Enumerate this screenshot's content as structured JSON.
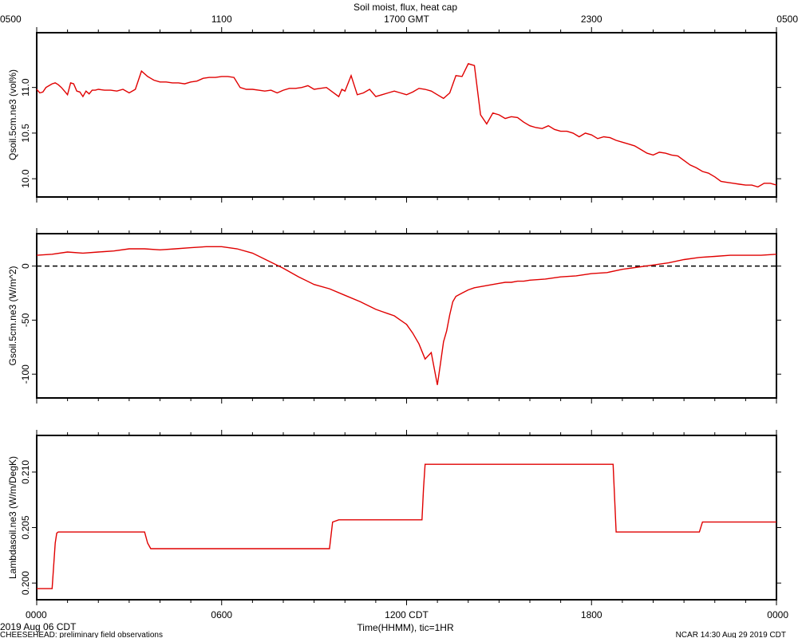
{
  "title": "Soil moist, flux, heat cap",
  "footer": {
    "date_label": "2019 Aug 06 CDT",
    "project_label": "CHEESEHEAD: preliminary field observations",
    "stamp_label": "NCAR 14:30 Aug 29 2019 CDT",
    "xaxis_label": "Time(HHMM), tic=1HR"
  },
  "colors": {
    "series": "#e00000",
    "frame": "#000000",
    "zero_line": "#000000"
  },
  "chart_data": [
    {
      "type": "line",
      "ylabel": "Qsoil.5cm.ne3 (vol%)",
      "ylim": [
        9.8,
        11.6
      ],
      "yticks": [
        10.0,
        10.5,
        11.0
      ],
      "ytick_labels": [
        "10.0",
        "10.5",
        "11.0"
      ],
      "top_axis": {
        "ticks": [
          0,
          6,
          12,
          18,
          24
        ],
        "labels": [
          "0500",
          "1100",
          "1700 GMT",
          "2300",
          "0500"
        ]
      },
      "series": [
        {
          "x": [
            0,
            0.1,
            0.2,
            0.3,
            0.4,
            0.5,
            0.6,
            0.7,
            0.8,
            0.9,
            1.0,
            1.1,
            1.2,
            1.3,
            1.4,
            1.5,
            1.6,
            1.7,
            1.8,
            1.9,
            2.0,
            2.2,
            2.4,
            2.6,
            2.8,
            3.0,
            3.2,
            3.4,
            3.6,
            3.7,
            3.8,
            4.0,
            4.2,
            4.4,
            4.6,
            4.8,
            5.0,
            5.2,
            5.4,
            5.6,
            5.8,
            6.0,
            6.2,
            6.4,
            6.6,
            6.8,
            7.0,
            7.2,
            7.4,
            7.6,
            7.8,
            8.0,
            8.2,
            8.4,
            8.6,
            8.8,
            9.0,
            9.2,
            9.4,
            9.6,
            9.8,
            9.9,
            10.0,
            10.2,
            10.4,
            10.6,
            10.8,
            11.0,
            11.2,
            11.4,
            11.6,
            11.8,
            12.0,
            12.2,
            12.4,
            12.6,
            12.8,
            13.0,
            13.2,
            13.4,
            13.6,
            13.8,
            14.0,
            14.2,
            14.4,
            14.6,
            14.8,
            15.0,
            15.2,
            15.4,
            15.6,
            15.8,
            16.0,
            16.2,
            16.4,
            16.6,
            16.8,
            17.0,
            17.2,
            17.4,
            17.6,
            17.8,
            18.0,
            18.2,
            18.4,
            18.6,
            18.8,
            19.0,
            19.2,
            19.4,
            19.6,
            19.8,
            20.0,
            20.2,
            20.4,
            20.6,
            20.8,
            21.0,
            21.2,
            21.4,
            21.6,
            21.8,
            22.0,
            22.2,
            22.4,
            22.6,
            22.8,
            23.0,
            23.2,
            23.4,
            23.6,
            23.8,
            24.0
          ],
          "y": [
            10.98,
            10.94,
            10.95,
            11.0,
            11.02,
            11.04,
            11.05,
            11.03,
            11.0,
            10.96,
            10.92,
            11.05,
            11.04,
            10.96,
            10.95,
            10.9,
            10.96,
            10.93,
            10.97,
            10.97,
            10.98,
            10.97,
            10.97,
            10.96,
            10.98,
            10.94,
            10.98,
            11.18,
            11.12,
            11.1,
            11.08,
            11.06,
            11.06,
            11.05,
            11.05,
            11.04,
            11.06,
            11.07,
            11.1,
            11.11,
            11.11,
            11.12,
            11.12,
            11.11,
            11.0,
            10.98,
            10.98,
            10.97,
            10.96,
            10.97,
            10.94,
            10.97,
            10.99,
            10.99,
            11.0,
            11.02,
            10.98,
            10.99,
            11.0,
            10.95,
            10.9,
            10.98,
            10.96,
            11.13,
            10.92,
            10.94,
            10.98,
            10.9,
            10.92,
            10.94,
            10.96,
            10.94,
            10.92,
            10.95,
            10.99,
            10.98,
            10.96,
            10.92,
            10.88,
            10.94,
            11.13,
            11.12,
            11.26,
            11.24,
            10.7,
            10.6,
            10.72,
            10.7,
            10.66,
            10.68,
            10.67,
            10.62,
            10.58,
            10.56,
            10.55,
            10.58,
            10.54,
            10.52,
            10.52,
            10.5,
            10.46,
            10.5,
            10.48,
            10.44,
            10.46,
            10.45,
            10.42,
            10.4,
            10.38,
            10.36,
            10.32,
            10.28,
            10.26,
            10.29,
            10.28,
            10.26,
            10.25,
            10.2,
            10.15,
            10.12,
            10.08,
            10.06,
            10.02,
            9.97,
            9.96,
            9.95,
            9.94,
            9.93,
            9.93,
            9.91,
            9.95,
            9.95,
            9.93
          ]
        }
      ]
    },
    {
      "type": "line",
      "ylabel": "Gsoil.5cm.ne3 (W/m^2)",
      "ylim": [
        -122,
        30
      ],
      "yticks": [
        -100,
        -50,
        0
      ],
      "ytick_labels": [
        "-100",
        "-50",
        "0"
      ],
      "series": [
        {
          "x": [
            0,
            0.5,
            1.0,
            1.5,
            2.0,
            2.5,
            3.0,
            3.5,
            4.0,
            4.5,
            5.0,
            5.5,
            6.0,
            6.5,
            7.0,
            7.5,
            8.0,
            8.5,
            9.0,
            9.5,
            10.0,
            10.5,
            11.0,
            11.2,
            11.4,
            11.6,
            11.8,
            12.0,
            12.2,
            12.4,
            12.6,
            12.8,
            13.0,
            13.1,
            13.2,
            13.3,
            13.4,
            13.5,
            13.6,
            13.8,
            14.0,
            14.2,
            14.4,
            14.6,
            14.8,
            15.0,
            15.2,
            15.4,
            15.6,
            15.8,
            16.0,
            16.5,
            17.0,
            17.5,
            18.0,
            18.5,
            19.0,
            19.5,
            20.0,
            20.5,
            21.0,
            21.5,
            22.0,
            22.5,
            23.0,
            23.5,
            24.0
          ],
          "y": [
            10,
            11,
            13,
            12,
            13,
            14,
            16,
            16,
            15,
            16,
            17,
            18,
            18,
            16,
            12,
            5,
            -2,
            -10,
            -17,
            -21,
            -27,
            -33,
            -40,
            -42,
            -44,
            -46,
            -50,
            -54,
            -62,
            -72,
            -86,
            -80,
            -110,
            -90,
            -70,
            -60,
            -45,
            -33,
            -28,
            -25,
            -22,
            -20,
            -19,
            -18,
            -17,
            -16,
            -15,
            -15,
            -14,
            -14,
            -13,
            -12,
            -10,
            -9,
            -7,
            -6,
            -3,
            -1,
            1,
            3,
            6,
            8,
            9,
            10,
            10,
            10,
            11
          ]
        }
      ],
      "reference_line": {
        "y": 0,
        "style": "dashed"
      }
    },
    {
      "type": "line",
      "ylabel": "Lambdasoil.ne3 (W/m/DegK)",
      "ylim": [
        0.1985,
        0.2133
      ],
      "yticks": [
        0.2,
        0.205,
        0.21
      ],
      "ytick_labels": [
        "0.200",
        "0.205",
        "0.210"
      ],
      "xlim": [
        0,
        24
      ],
      "xticks": [
        0,
        6,
        12,
        18,
        24
      ],
      "xtick_labels": [
        "0000",
        "0600",
        "1200 CDT",
        "1800",
        "0000"
      ],
      "series": [
        {
          "x": [
            0,
            0.5,
            0.6,
            0.65,
            0.7,
            3.5,
            3.6,
            3.7,
            9.5,
            9.6,
            9.8,
            12.5,
            12.55,
            12.6,
            18.7,
            18.8,
            21.5,
            21.6,
            24
          ],
          "y": [
            0.1995,
            0.1995,
            0.2036,
            0.2045,
            0.2046,
            0.2046,
            0.2036,
            0.2031,
            0.2031,
            0.2055,
            0.2057,
            0.2057,
            0.2085,
            0.2107,
            0.2107,
            0.2046,
            0.2046,
            0.2055,
            0.2055
          ]
        }
      ]
    }
  ]
}
